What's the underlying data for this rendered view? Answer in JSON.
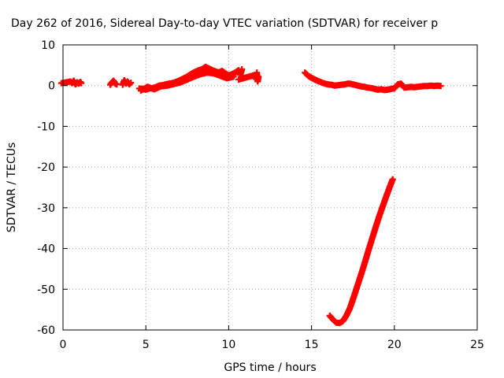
{
  "chart_data": {
    "type": "scatter",
    "title": "Day 262 of 2016, Sidereal Day-to-day VTEC variation (SDTVAR) for receiver p",
    "xlabel": "GPS time / hours",
    "ylabel": "SDTVAR / TECUs",
    "xlim": [
      0,
      25
    ],
    "ylim": [
      -60,
      10
    ],
    "xticks": [
      0,
      5,
      10,
      15,
      20,
      25
    ],
    "yticks": [
      -60,
      -50,
      -40,
      -30,
      -20,
      -10,
      0,
      10
    ],
    "xtick_labels": [
      "0",
      "5",
      "10",
      "15",
      "20",
      "25"
    ],
    "ytick_labels": [
      "-60",
      "-50",
      "-40",
      "-30",
      "-20",
      "-10",
      "0",
      "10"
    ],
    "grid": true,
    "marker": "plus",
    "color": "#ff0000",
    "series": [
      {
        "x": [
          -0.1,
          0.45,
          0.55,
          0.65,
          0.75,
          0.85,
          0.95,
          1.05,
          1.1
        ],
        "y": [
          0.6,
          1.0,
          0.6,
          1.2,
          0.3,
          0.8,
          0.5,
          0.9,
          0.6
        ]
      },
      {
        "x": [
          2.85,
          2.95,
          3.05,
          3.15,
          3.25
        ],
        "y": [
          0.2,
          0.8,
          1.2,
          0.5,
          0.3
        ]
      },
      {
        "x": [
          3.6,
          3.7,
          3.8,
          3.9,
          4.0,
          4.1
        ],
        "y": [
          0.2,
          1.3,
          0.5,
          1.0,
          0.3,
          0.7
        ]
      },
      {
        "x": [
          4.6,
          4.8,
          5.0,
          5.2,
          5.4,
          5.6,
          5.8,
          6.0,
          6.2,
          6.4,
          6.6,
          6.8,
          7.0,
          7.2,
          7.4,
          7.6,
          7.8,
          8.0,
          8.2,
          8.4,
          8.6,
          8.8,
          9.0,
          9.2,
          9.4,
          9.6,
          9.8,
          10.0,
          10.2,
          10.4,
          10.6,
          10.7,
          10.8
        ],
        "y": [
          -0.7,
          -0.8,
          -1.0,
          -0.7,
          -0.6,
          -0.4,
          0.0,
          0.1,
          0.3,
          0.5,
          0.6,
          0.9,
          1.2,
          1.6,
          2.0,
          2.5,
          3.0,
          3.4,
          3.8,
          4.0,
          4.6,
          4.2,
          3.8,
          3.5,
          3.2,
          3.6,
          3.0,
          2.5,
          2.8,
          3.2,
          3.8,
          2.6,
          4.0
        ]
      },
      {
        "x": [
          4.7,
          5.1,
          5.5,
          5.9,
          6.3,
          6.7,
          7.1,
          7.5,
          7.9,
          8.3,
          8.7,
          9.1,
          9.5,
          9.9,
          10.3
        ],
        "y": [
          -1.2,
          -0.3,
          -0.9,
          -0.2,
          0.0,
          0.4,
          0.8,
          1.5,
          2.2,
          2.8,
          3.2,
          3.0,
          2.4,
          1.8,
          2.2
        ]
      },
      {
        "x": [
          10.6,
          11.6,
          11.65,
          11.7,
          11.75,
          11.8
        ],
        "y": [
          1.5,
          2.6,
          1.6,
          3.2,
          1.0,
          2.2
        ]
      },
      {
        "x": [
          14.6,
          14.8,
          15.0,
          15.2,
          15.4,
          15.6,
          15.8,
          16.0,
          16.2,
          16.4,
          16.6,
          16.8,
          17.0,
          17.2,
          17.4,
          17.6,
          17.8,
          18.0,
          18.2,
          18.4,
          18.6,
          18.8,
          19.0,
          19.2,
          19.4,
          19.6,
          19.8,
          20.0,
          20.2,
          20.4,
          20.6,
          20.8,
          21.0,
          21.2,
          21.4,
          21.6,
          21.8,
          22.0,
          22.2,
          22.4,
          22.6,
          22.8
        ],
        "y": [
          3.2,
          2.4,
          1.9,
          1.5,
          1.1,
          0.8,
          0.5,
          0.3,
          0.2,
          0.0,
          0.1,
          0.2,
          0.3,
          0.5,
          0.4,
          0.2,
          0.0,
          -0.2,
          -0.3,
          -0.5,
          -0.6,
          -0.8,
          -1.0,
          -0.9,
          -1.1,
          -1.0,
          -0.8,
          -0.7,
          0.3,
          0.5,
          -0.5,
          -0.4,
          -0.3,
          -0.4,
          -0.3,
          -0.2,
          -0.1,
          -0.1,
          0.0,
          -0.1,
          0.0,
          -0.1
        ]
      },
      {
        "x": [
          16.1,
          16.3,
          16.5,
          16.7,
          16.9,
          17.1,
          17.3,
          17.5,
          17.7,
          17.9,
          18.1,
          18.3,
          18.5,
          18.7,
          18.9,
          19.1,
          19.3,
          19.5,
          19.7,
          19.9
        ],
        "y": [
          -56.5,
          -57.5,
          -58.2,
          -58.3,
          -57.8,
          -56.5,
          -54.8,
          -52.5,
          -50.0,
          -47.5,
          -45.0,
          -42.3,
          -39.6,
          -37.0,
          -34.4,
          -31.9,
          -29.6,
          -27.3,
          -25.1,
          -23.0
        ]
      }
    ]
  }
}
